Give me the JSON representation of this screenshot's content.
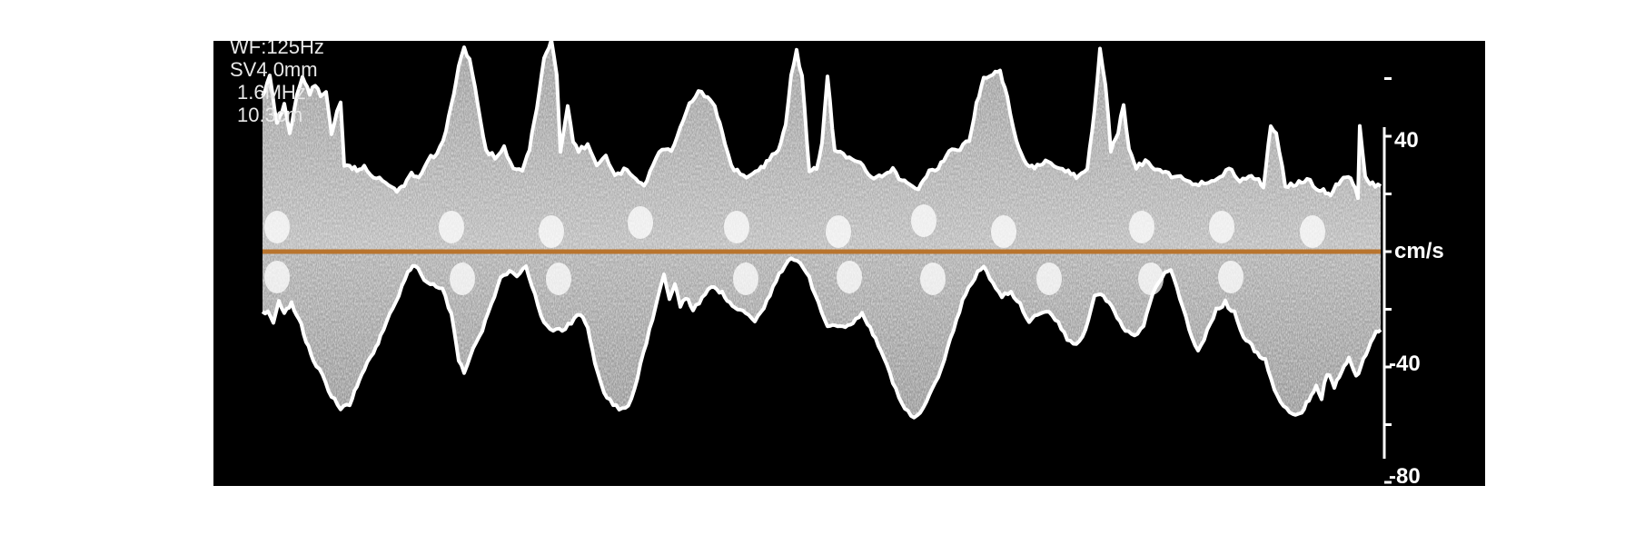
{
  "parameters": {
    "wf": "WF:125Hz",
    "sv": "SV4.0mm",
    "freq": "1.6MHz",
    "depth": "10.3cm"
  },
  "velocity_scale": {
    "unit": "cm/s",
    "labels": [
      "40",
      "-40",
      "-80"
    ],
    "ticks": [
      60,
      40,
      20,
      0,
      -20,
      -40,
      -60,
      -80
    ]
  },
  "colors": {
    "background": "#000000",
    "envelope": "#ffffff",
    "baseline": "#b8742e",
    "page": "#ffffff"
  },
  "envelope": {
    "upper_kind": "forward-velocity-envelope",
    "lower_kind": "reverse-velocity-envelope"
  }
}
